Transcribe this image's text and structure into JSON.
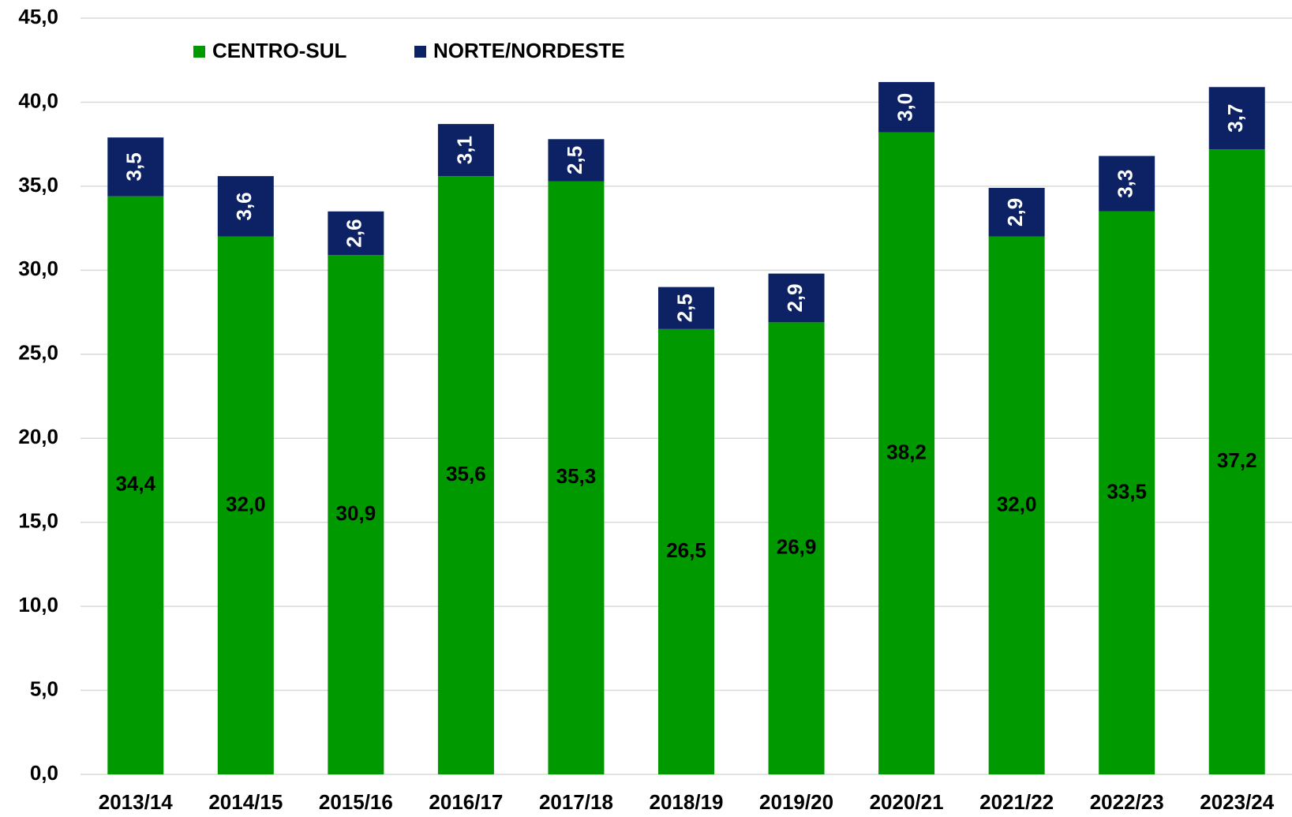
{
  "chart_data": {
    "type": "stacked_bar",
    "categories": [
      "2013/14",
      "2014/15",
      "2015/16",
      "2016/17",
      "2017/18",
      "2018/19",
      "2019/20",
      "2020/21",
      "2021/22",
      "2022/23",
      "2023/24"
    ],
    "series": [
      {
        "name": "CENTRO-SUL",
        "color": "#009900",
        "values": [
          34.4,
          32.0,
          30.9,
          35.6,
          35.3,
          26.5,
          26.9,
          38.2,
          32.0,
          33.5,
          37.2
        ],
        "value_labels": [
          "34,4",
          "32,0",
          "30,9",
          "35,6",
          "35,3",
          "26,5",
          "26,9",
          "38,2",
          "32,0",
          "33,5",
          "37,2"
        ]
      },
      {
        "name": "NORTE/NORDESTE",
        "color": "#0c2264",
        "values": [
          3.5,
          3.6,
          2.6,
          3.1,
          2.5,
          2.5,
          2.9,
          3.0,
          2.9,
          3.3,
          3.7
        ],
        "value_labels": [
          "3,5",
          "3,6",
          "2,6",
          "3,1",
          "2,5",
          "2,5",
          "2,9",
          "3,0",
          "2,9",
          "3,3",
          "3,7"
        ]
      }
    ],
    "ylim": [
      0,
      45
    ],
    "yticks": [
      {
        "value": 0,
        "label": "0,0"
      },
      {
        "value": 5,
        "label": "5,0"
      },
      {
        "value": 10,
        "label": "10,0"
      },
      {
        "value": 15,
        "label": "15,0"
      },
      {
        "value": 20,
        "label": "20,0"
      },
      {
        "value": 25,
        "label": "25,0"
      },
      {
        "value": 30,
        "label": "30,0"
      },
      {
        "value": 35,
        "label": "35,0"
      },
      {
        "value": 40,
        "label": "40,0"
      },
      {
        "value": 45,
        "label": "45,0"
      }
    ],
    "grid": true,
    "legend": "top"
  }
}
